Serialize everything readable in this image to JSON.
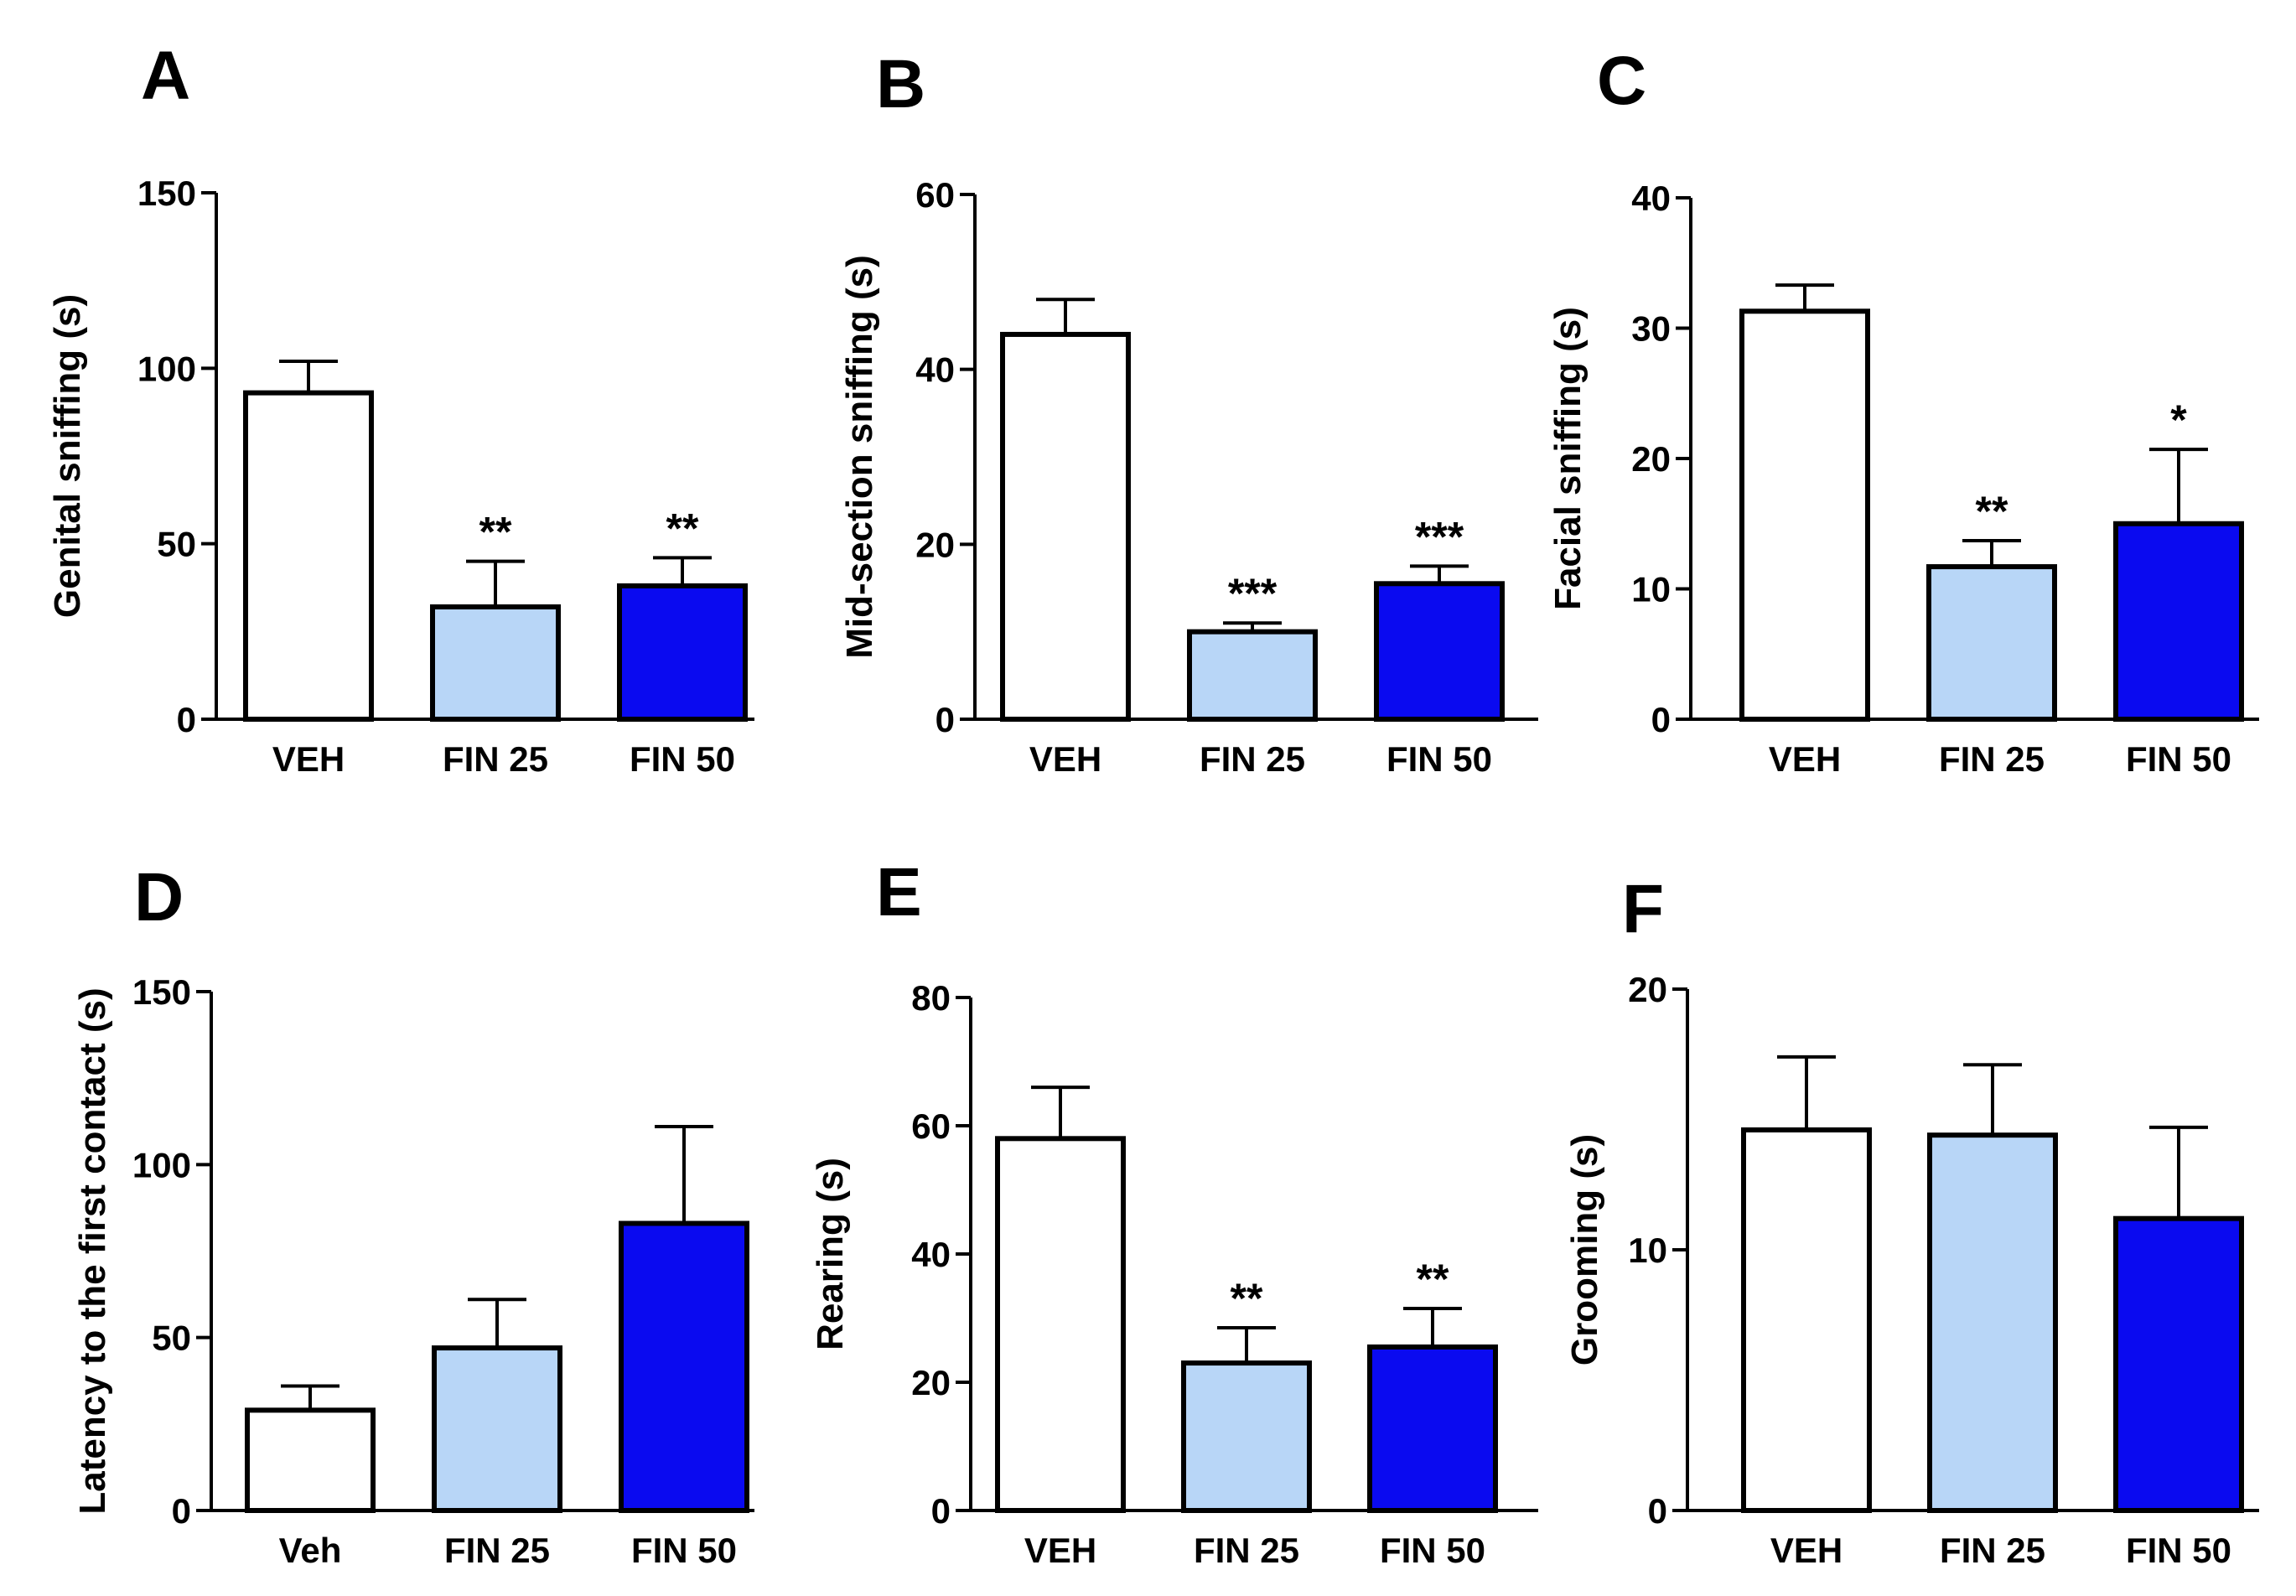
{
  "colors": {
    "VEH": "#ffffff",
    "FIN 25": "#b8d6f7",
    "FIN 50": "#0a0af0",
    "stroke": "#000000"
  },
  "chart_data": [
    {
      "panel": "A",
      "type": "bar",
      "ylabel": "Genital sniffing (s)",
      "ylim": [
        0,
        150
      ],
      "yticks": [
        "0",
        "50",
        "100",
        "150"
      ],
      "categories": [
        "VEH",
        "FIN 25",
        "FIN 50"
      ],
      "values": [
        93,
        32,
        38
      ],
      "errors": [
        9,
        13,
        8
      ],
      "significance": [
        "",
        "**",
        "**"
      ]
    },
    {
      "panel": "B",
      "type": "bar",
      "ylabel": "Mid-section sniffing (s)",
      "ylim": [
        0,
        60
      ],
      "yticks": [
        "0",
        "20",
        "40",
        "60"
      ],
      "categories": [
        "VEH",
        "FIN 25",
        "FIN 50"
      ],
      "values": [
        44,
        10,
        15.5
      ],
      "errors": [
        4,
        1,
        2
      ],
      "significance": [
        "",
        "***",
        "***"
      ]
    },
    {
      "panel": "C",
      "type": "bar",
      "ylabel": "Facial sniffing (s)",
      "ylim": [
        0,
        40
      ],
      "yticks": [
        "0",
        "10",
        "20",
        "30",
        "40"
      ],
      "categories": [
        "VEH",
        "FIN 25",
        "FIN 50"
      ],
      "values": [
        31.3,
        11.7,
        15
      ],
      "errors": [
        2,
        2,
        5.7
      ],
      "significance": [
        "",
        "**",
        "*"
      ]
    },
    {
      "panel": "D",
      "type": "bar",
      "ylabel": "Latency to the first contact (s)",
      "ylim": [
        0,
        150
      ],
      "yticks": [
        "0",
        "50",
        "100",
        "150"
      ],
      "categories": [
        "Veh",
        "FIN 25",
        "FIN 50"
      ],
      "values": [
        29,
        47,
        83
      ],
      "errors": [
        7,
        14,
        28
      ],
      "significance": [
        "",
        "",
        ""
      ]
    },
    {
      "panel": "E",
      "type": "bar",
      "ylabel": "Rearing (s)",
      "ylim": [
        0,
        80
      ],
      "yticks": [
        "0",
        "20",
        "40",
        "60",
        "80"
      ],
      "categories": [
        "VEH",
        "FIN 25",
        "FIN 50"
      ],
      "values": [
        58,
        23,
        25.5
      ],
      "errors": [
        8,
        5.5,
        6
      ],
      "significance": [
        "",
        "**",
        "**"
      ]
    },
    {
      "panel": "F",
      "type": "bar",
      "ylabel": "Grooming (s)",
      "ylim": [
        0,
        20
      ],
      "yticks": [
        "0",
        "10",
        "20"
      ],
      "categories": [
        "VEH",
        "FIN 25",
        "FIN 50"
      ],
      "values": [
        14.6,
        14.4,
        11.2
      ],
      "errors": [
        2.8,
        2.7,
        3.5
      ],
      "significance": [
        "",
        "",
        ""
      ]
    }
  ]
}
